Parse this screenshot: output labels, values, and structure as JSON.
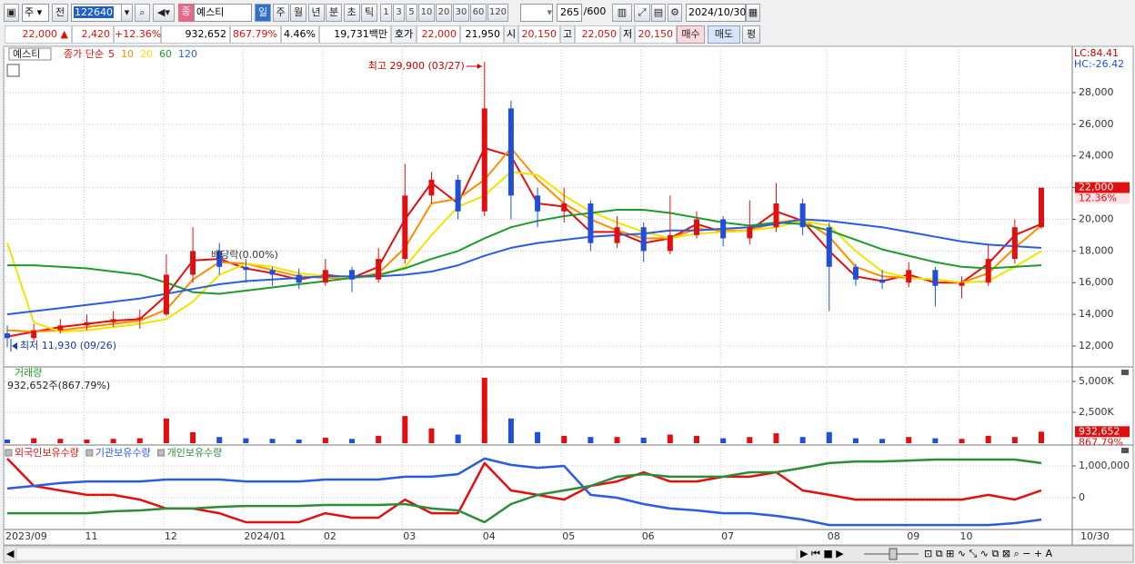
{
  "toolbar": {
    "market": "주",
    "prev": "전",
    "code": "122640",
    "badge": "종",
    "name": "예스티",
    "periods": [
      "일",
      "주",
      "월",
      "년",
      "분",
      "초",
      "틱"
    ],
    "intervals": [
      "1",
      "3",
      "5",
      "10",
      "20",
      "30",
      "60",
      "120"
    ],
    "count": "265",
    "max_count": "/600",
    "date": "2024/10/30"
  },
  "quote": {
    "price": "22,000",
    "arrow": "▲",
    "change": "2,420",
    "change_pct": "+12.36%",
    "volume": "932,652",
    "volume_ratio": "867.79%",
    "turnover": "4.46%",
    "amount": "19,731백만",
    "bid_ask_label": "호가",
    "ask": "22,000",
    "bid": "21,950",
    "open_label": "시",
    "open": "20,150",
    "high_label": "고",
    "high": "22,050",
    "low_label": "저",
    "low": "20,150",
    "buy": "매수",
    "sell": "매도",
    "avg": "평"
  },
  "chart_data": [
    {
      "type": "candlestick",
      "title": "예스티",
      "ma_label": "종가 단순",
      "categories": [
        "2023/09",
        null,
        null,
        "11",
        null,
        null,
        "12",
        null,
        null,
        "2024/01",
        null,
        null,
        "02",
        null,
        null,
        "03",
        null,
        null,
        "04",
        null,
        null,
        "05",
        null,
        null,
        "06",
        null,
        null,
        "07",
        null,
        null,
        null,
        "08",
        null,
        null,
        "09",
        null,
        "10",
        null,
        null,
        null
      ],
      "open": [
        12800,
        12500,
        13000,
        13300,
        13500,
        13700,
        14000,
        16500,
        18000,
        17000,
        16800,
        16500,
        16000,
        16800,
        16200,
        17500,
        21500,
        22500,
        20500,
        27000,
        21500,
        20500,
        21000,
        18500,
        19500,
        18000,
        19000,
        20000,
        18800,
        19500,
        21000,
        19500,
        17000,
        16200,
        16000,
        16800,
        15800,
        16000,
        17500,
        19500
      ],
      "high": [
        13300,
        13400,
        13700,
        14000,
        14200,
        14300,
        17800,
        19500,
        18500,
        17500,
        17000,
        16900,
        17500,
        17000,
        18200,
        23500,
        23000,
        22800,
        29900,
        27500,
        22000,
        22000,
        21200,
        20200,
        19800,
        21500,
        20500,
        20200,
        21200,
        22300,
        21300,
        19800,
        17200,
        16800,
        17300,
        17000,
        16400,
        18400,
        20000,
        22000
      ],
      "low": [
        11930,
        12300,
        12800,
        13000,
        13200,
        13100,
        13900,
        16000,
        16500,
        16000,
        15800,
        15600,
        15800,
        15400,
        16000,
        17200,
        21000,
        20000,
        20200,
        20000,
        19500,
        19800,
        18000,
        18200,
        17300,
        17800,
        18800,
        18300,
        18400,
        19200,
        19000,
        14200,
        15800,
        15600,
        15700,
        14500,
        15000,
        15800,
        17200,
        19400
      ],
      "close": [
        12500,
        13000,
        13300,
        13500,
        13700,
        13800,
        16500,
        18000,
        17000,
        16800,
        16500,
        16000,
        16800,
        16200,
        17500,
        21500,
        22500,
        20500,
        27000,
        21500,
        20500,
        21000,
        18500,
        19500,
        18000,
        19000,
        20000,
        18800,
        19500,
        21000,
        19500,
        17000,
        16200,
        16000,
        16800,
        15800,
        16000,
        17500,
        19500,
        22000
      ],
      "up_color": "#e01010",
      "down_color": "#1f4fd8",
      "series": [
        {
          "name": "5",
          "color": "#e01010",
          "values": [
            12600,
            12900,
            13200,
            13400,
            13600,
            13700,
            15200,
            17400,
            17500,
            16900,
            16600,
            16200,
            16500,
            16300,
            17000,
            20000,
            22300,
            21000,
            24500,
            24000,
            21000,
            20800,
            19200,
            19200,
            18500,
            18800,
            19700,
            19200,
            19300,
            20500,
            19900,
            18000,
            16400,
            16100,
            16500,
            16000,
            16000,
            17200,
            19000,
            19700
          ]
        },
        {
          "name": "10",
          "color": "#ff8c00",
          "values": [
            13000,
            12900,
            13000,
            13200,
            13400,
            13600,
            14300,
            16200,
            17300,
            17200,
            16800,
            16400,
            16300,
            16300,
            16600,
            18200,
            21000,
            21300,
            22500,
            24500,
            22500,
            21000,
            20000,
            19300,
            18800,
            18800,
            19400,
            19300,
            19300,
            19800,
            20000,
            18900,
            17000,
            16400,
            16300,
            16200,
            16000,
            16600,
            18200,
            19600
          ]
        },
        {
          "name": "20",
          "color": "#f2e200",
          "values": [
            18500,
            13500,
            12900,
            13000,
            13200,
            13400,
            13700,
            14800,
            16500,
            17200,
            17000,
            16600,
            16400,
            16300,
            16400,
            17000,
            19000,
            20800,
            21500,
            23000,
            22800,
            21500,
            20500,
            19800,
            19200,
            18800,
            19100,
            19200,
            19300,
            19500,
            19900,
            19600,
            18000,
            16700,
            16300,
            16200,
            16000,
            16100,
            17000,
            18000
          ]
        },
        {
          "name": "60",
          "color": "#1e9a2e",
          "values": [
            17100,
            17100,
            17000,
            16900,
            16700,
            16500,
            16000,
            15400,
            15300,
            15500,
            15700,
            15900,
            16100,
            16300,
            16500,
            16900,
            17500,
            18000,
            18800,
            19500,
            19900,
            20200,
            20400,
            20600,
            20600,
            20400,
            20100,
            19800,
            19600,
            19800,
            19700,
            19300,
            18700,
            18100,
            17700,
            17300,
            17000,
            16900,
            17000,
            17100
          ]
        },
        {
          "name": "120",
          "color": "#2b5be0",
          "values": [
            14000,
            14200,
            14400,
            14600,
            14800,
            15000,
            15300,
            15600,
            15900,
            16100,
            16200,
            16300,
            16400,
            16400,
            16400,
            16500,
            16700,
            17100,
            17700,
            18200,
            18500,
            18700,
            18900,
            19000,
            19100,
            19300,
            19300,
            19400,
            19500,
            19700,
            20000,
            19900,
            19700,
            19500,
            19200,
            18900,
            18600,
            18400,
            18300,
            18200
          ]
        }
      ],
      "ylim": [
        10740,
        30690
      ],
      "yticks": [
        {
          "value": 12000,
          "label": "12,000"
        },
        {
          "value": 14000,
          "label": "14,000"
        },
        {
          "value": 16000,
          "label": "16,000"
        },
        {
          "value": 18000,
          "label": "18,000"
        },
        {
          "value": 20000,
          "label": "20,000"
        },
        {
          "value": 22000,
          "label": "22,000"
        },
        {
          "value": 24000,
          "label": "24,000"
        },
        {
          "value": 26000,
          "label": "26,000"
        },
        {
          "value": 28000,
          "label": "28,000"
        }
      ],
      "grid": true,
      "high_annotation": "최고 29,900 (03/27)",
      "low_annotation": "최저 11,930 (09/26)",
      "event_annotation": "배당락(0.00%)",
      "lc_label": "LC:84.41",
      "hc_label": "HC:-26.42",
      "last_price_label": "22,000",
      "last_change_label": "12.36%",
      "last_date": "10/30"
    },
    {
      "type": "bar",
      "title": "거래량",
      "subtitle": "932,652주(867.79%)",
      "values": [
        300000,
        400000,
        350000,
        300000,
        350000,
        400000,
        2000000,
        900000,
        500000,
        400000,
        350000,
        300000,
        450000,
        350000,
        600000,
        2200000,
        1200000,
        700000,
        5300000,
        2000000,
        900000,
        600000,
        500000,
        500000,
        450000,
        700000,
        600000,
        400000,
        500000,
        800000,
        500000,
        900000,
        400000,
        350000,
        500000,
        400000,
        350000,
        600000,
        500000,
        932652
      ],
      "ylim": [
        0,
        6100000
      ],
      "yticks": [
        {
          "value": 2500000,
          "label": "2,500K"
        },
        {
          "value": 5000000,
          "label": "5,000K"
        }
      ],
      "grid": true,
      "last_value_label": "932,652",
      "last_ratio_label": "867.79%"
    },
    {
      "type": "line",
      "series": [
        {
          "name": "외국인보유수량",
          "color": "#e01010",
          "values": [
            1230000,
            370000,
            230000,
            90000,
            90000,
            -60000,
            -340000,
            -340000,
            -490000,
            -770000,
            -770000,
            -770000,
            -490000,
            -630000,
            -630000,
            -60000,
            -490000,
            -490000,
            1090000,
            230000,
            90000,
            -60000,
            370000,
            510000,
            800000,
            510000,
            510000,
            660000,
            660000,
            800000,
            230000,
            90000,
            -60000,
            -60000,
            -60000,
            -60000,
            -60000,
            90000,
            -60000,
            230000
          ]
        },
        {
          "name": "기관보유수량",
          "color": "#2b5be0",
          "values": [
            290000,
            370000,
            460000,
            510000,
            510000,
            510000,
            570000,
            570000,
            570000,
            510000,
            510000,
            510000,
            570000,
            570000,
            570000,
            660000,
            660000,
            740000,
            1230000,
            1030000,
            940000,
            1000000,
            90000,
            0,
            -200000,
            -340000,
            -400000,
            -490000,
            -490000,
            -570000,
            -690000,
            -860000,
            -860000,
            -860000,
            -860000,
            -860000,
            -860000,
            -860000,
            -800000,
            -690000
          ]
        },
        {
          "name": "개인보유수량",
          "color": "#2e8b3a",
          "values": [
            -490000,
            -490000,
            -490000,
            -490000,
            -430000,
            -400000,
            -340000,
            -340000,
            -290000,
            -260000,
            -260000,
            -260000,
            -230000,
            -230000,
            -230000,
            -200000,
            -340000,
            -400000,
            -770000,
            -200000,
            90000,
            230000,
            370000,
            660000,
            740000,
            660000,
            660000,
            660000,
            800000,
            800000,
            940000,
            1090000,
            1140000,
            1140000,
            1170000,
            1200000,
            1200000,
            1200000,
            1200000,
            1090000
          ]
        }
      ],
      "ylim": [
        -1000000,
        1600000
      ],
      "yticks": [
        0,
        {
          "value": 1000000,
          "label": "1,000,000"
        }
      ],
      "grid": true
    }
  ]
}
